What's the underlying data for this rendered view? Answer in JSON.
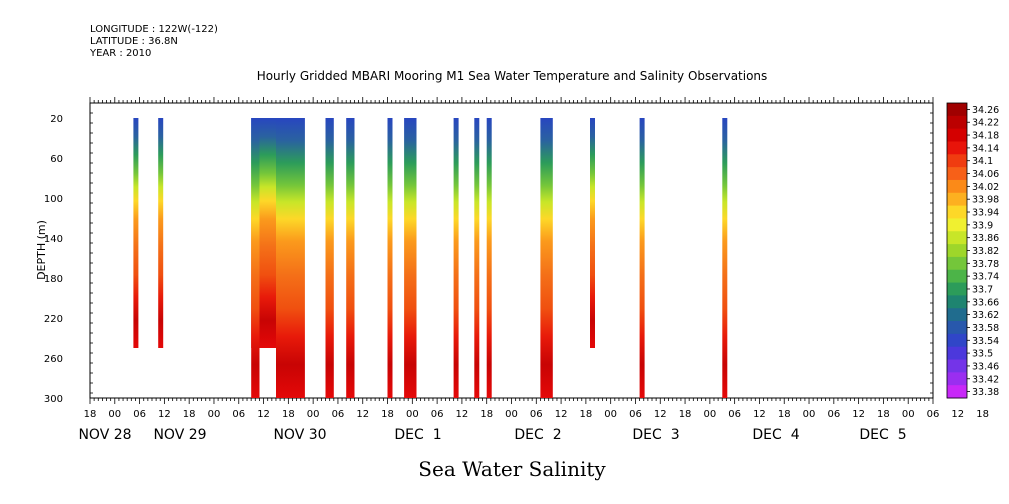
{
  "header": {
    "longitude": "LONGITUDE : 122W(-122)",
    "latitude": "LATITUDE : 36.8N",
    "year": "YEAR : 2010"
  },
  "chart_data": {
    "type": "heatmap",
    "title": "Hourly Gridded MBARI Mooring M1 Sea Water Temperature and Salinity Observations",
    "xlabel": "Sea Water Salinity",
    "ylabel": "DEPTH (m)",
    "ylim": [
      300,
      5
    ],
    "yticks": [
      20,
      60,
      100,
      140,
      180,
      220,
      260,
      300
    ],
    "xlim_hours_from_nov28_00": [
      -6,
      198
    ],
    "xticks_hour_labels": [
      "18",
      "00",
      "06",
      "12",
      "18",
      "00",
      "06",
      "12",
      "18",
      "00",
      "06",
      "12",
      "18",
      "00",
      "06",
      "12",
      "18",
      "00",
      "06",
      "12",
      "18",
      "00",
      "06",
      "12",
      "18",
      "00",
      "06",
      "12",
      "18",
      "00",
      "06",
      "12",
      "18",
      "00",
      "06",
      "12",
      "18"
    ],
    "date_labels": [
      "NOV 28",
      "NOV 29",
      "NOV 30",
      "DEC  1",
      "DEC  2",
      "DEC  3",
      "DEC  4",
      "DEC  5"
    ],
    "colorbar": {
      "levels": [
        34.26,
        34.22,
        34.18,
        34.14,
        34.1,
        34.06,
        34.02,
        33.98,
        33.94,
        33.9,
        33.86,
        33.82,
        33.78,
        33.74,
        33.7,
        33.66,
        33.62,
        33.58,
        33.54,
        33.5,
        33.46,
        33.42,
        33.38
      ],
      "labels": [
        "34.26",
        "34.22",
        "34.18",
        "34.14",
        "34.1",
        "34.06",
        "34.02",
        "33.98",
        "33.94",
        "33.9",
        "33.86",
        "33.82",
        "33.78",
        "33.74",
        "33.7",
        "33.66",
        "33.62",
        "33.58",
        "33.54",
        "33.5",
        "33.46",
        "33.42",
        "33.38"
      ],
      "colors": [
        "#a00000",
        "#bb0000",
        "#d40000",
        "#e8140a",
        "#f03c10",
        "#f76018",
        "#fb8a18",
        "#fdb020",
        "#fdd828",
        "#f0f030",
        "#c8e628",
        "#9ed62a",
        "#74c63a",
        "#4cb448",
        "#2c9c5a",
        "#1e8470",
        "#206c8e",
        "#2858ac",
        "#3046c8",
        "#4c38dc",
        "#7434e8",
        "#9a2ef0",
        "#c828f8"
      ]
    },
    "profile_note": "salinity increases with depth; fresher (blue/green) near surface, saltier (red) below 200 m",
    "series": [
      {
        "start_hour": 4.5,
        "end_hour": 5.5,
        "max_depth": 250
      },
      {
        "start_hour": 10.5,
        "end_hour": 11.5,
        "max_depth": 250
      },
      {
        "start_hour": 33,
        "end_hour": 39,
        "max_depth": 250
      },
      {
        "start_hour": 33,
        "end_hour": 35,
        "max_depth": 300
      },
      {
        "start_hour": 39,
        "end_hour": 46,
        "max_depth": 300
      },
      {
        "start_hour": 51,
        "end_hour": 53,
        "max_depth": 300
      },
      {
        "start_hour": 56,
        "end_hour": 58,
        "max_depth": 300
      },
      {
        "start_hour": 66,
        "end_hour": 67,
        "max_depth": 300
      },
      {
        "start_hour": 70,
        "end_hour": 73,
        "max_depth": 300
      },
      {
        "start_hour": 82,
        "end_hour": 83,
        "max_depth": 300
      },
      {
        "start_hour": 87,
        "end_hour": 88,
        "max_depth": 300
      },
      {
        "start_hour": 90,
        "end_hour": 91,
        "max_depth": 300
      },
      {
        "start_hour": 103,
        "end_hour": 106,
        "max_depth": 300
      },
      {
        "start_hour": 115,
        "end_hour": 116,
        "max_depth": 250
      },
      {
        "start_hour": 127,
        "end_hour": 128,
        "max_depth": 300
      },
      {
        "start_hour": 147,
        "end_hour": 148,
        "max_depth": 300
      }
    ]
  }
}
